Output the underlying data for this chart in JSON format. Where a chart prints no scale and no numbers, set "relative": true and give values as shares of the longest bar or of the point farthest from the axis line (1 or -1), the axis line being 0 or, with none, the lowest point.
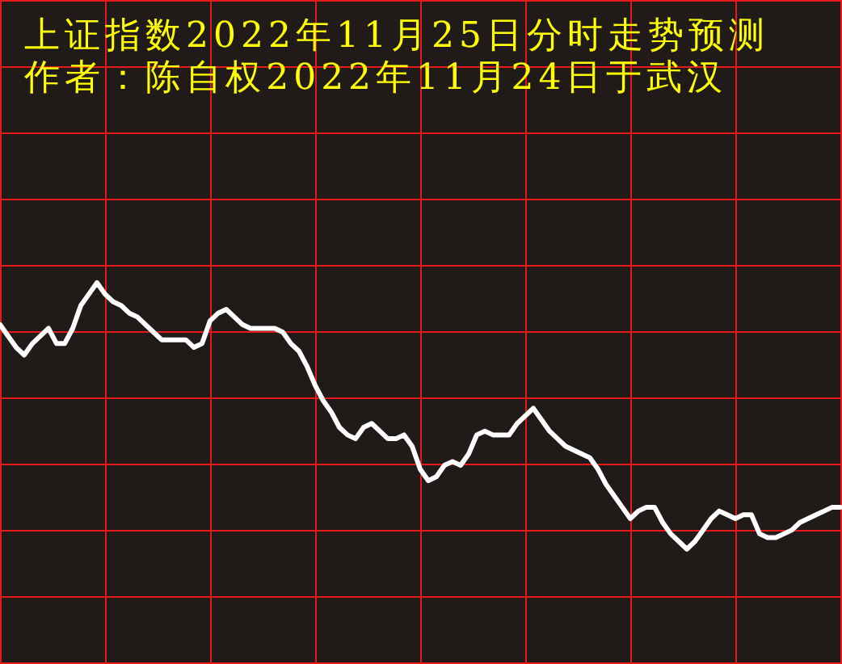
{
  "chart_data": {
    "type": "line",
    "title": "上证指数2022年11月25日分时走势预测",
    "subtitle": "作者：陈自权2022年11月24日于武汉",
    "categories": [
      null,
      null,
      null,
      null,
      null,
      null,
      null,
      null,
      null,
      null,
      null,
      null,
      null,
      null,
      null,
      null,
      null,
      null,
      null,
      null,
      null,
      null,
      null,
      null,
      null,
      null,
      null,
      null,
      null,
      null,
      null,
      null,
      null,
      null,
      null,
      null,
      null,
      null,
      null,
      null,
      null,
      null,
      null,
      null,
      null,
      null,
      null,
      null,
      null,
      null,
      null,
      null,
      null,
      null,
      null,
      null,
      null,
      null,
      null,
      null,
      null,
      null,
      null,
      null,
      null,
      null,
      null,
      null,
      null,
      null,
      null,
      null,
      null,
      null,
      null,
      null,
      null,
      null,
      null,
      null,
      null,
      null,
      null,
      null,
      null,
      null,
      null,
      null,
      null,
      null,
      null,
      null,
      null,
      null,
      null,
      null,
      null,
      null,
      null,
      null,
      null,
      null,
      null,
      null,
      null
    ],
    "series": [
      {
        "color": "#ffffff",
        "values": [
          0.89,
          0.86,
          0.83,
          0.81,
          0.84,
          0.86,
          0.88,
          0.84,
          0.84,
          0.88,
          0.94,
          0.97,
          1,
          0.97,
          0.95,
          0.94,
          0.92,
          0.91,
          0.89,
          0.87,
          0.85,
          0.85,
          0.85,
          0.85,
          0.83,
          0.84,
          0.9,
          0.92,
          0.93,
          0.91,
          0.89,
          0.88,
          0.88,
          0.88,
          0.88,
          0.87,
          0.84,
          0.82,
          0.78,
          0.73,
          0.69,
          0.66,
          0.62,
          0.6,
          0.59,
          0.62,
          0.63,
          0.61,
          0.59,
          0.59,
          0.6,
          0.57,
          0.51,
          0.48,
          0.49,
          0.52,
          0.53,
          0.52,
          0.55,
          0.6,
          0.61,
          0.6,
          0.6,
          0.6,
          0.63,
          0.65,
          0.67,
          0.64,
          0.61,
          0.59,
          0.57,
          0.56,
          0.55,
          0.54,
          0.51,
          0.47,
          0.44,
          0.41,
          0.38,
          0.4,
          0.41,
          0.41,
          0.37,
          0.34,
          0.32,
          0.3,
          0.32,
          0.35,
          0.38,
          0.4,
          0.39,
          0.38,
          0.39,
          0.39,
          0.34,
          0.33,
          0.33,
          0.34,
          0.35,
          0.37,
          0.38,
          0.39,
          0.4,
          0.41,
          0.41
        ]
      }
    ],
    "relative": true,
    "grid": true
  }
}
